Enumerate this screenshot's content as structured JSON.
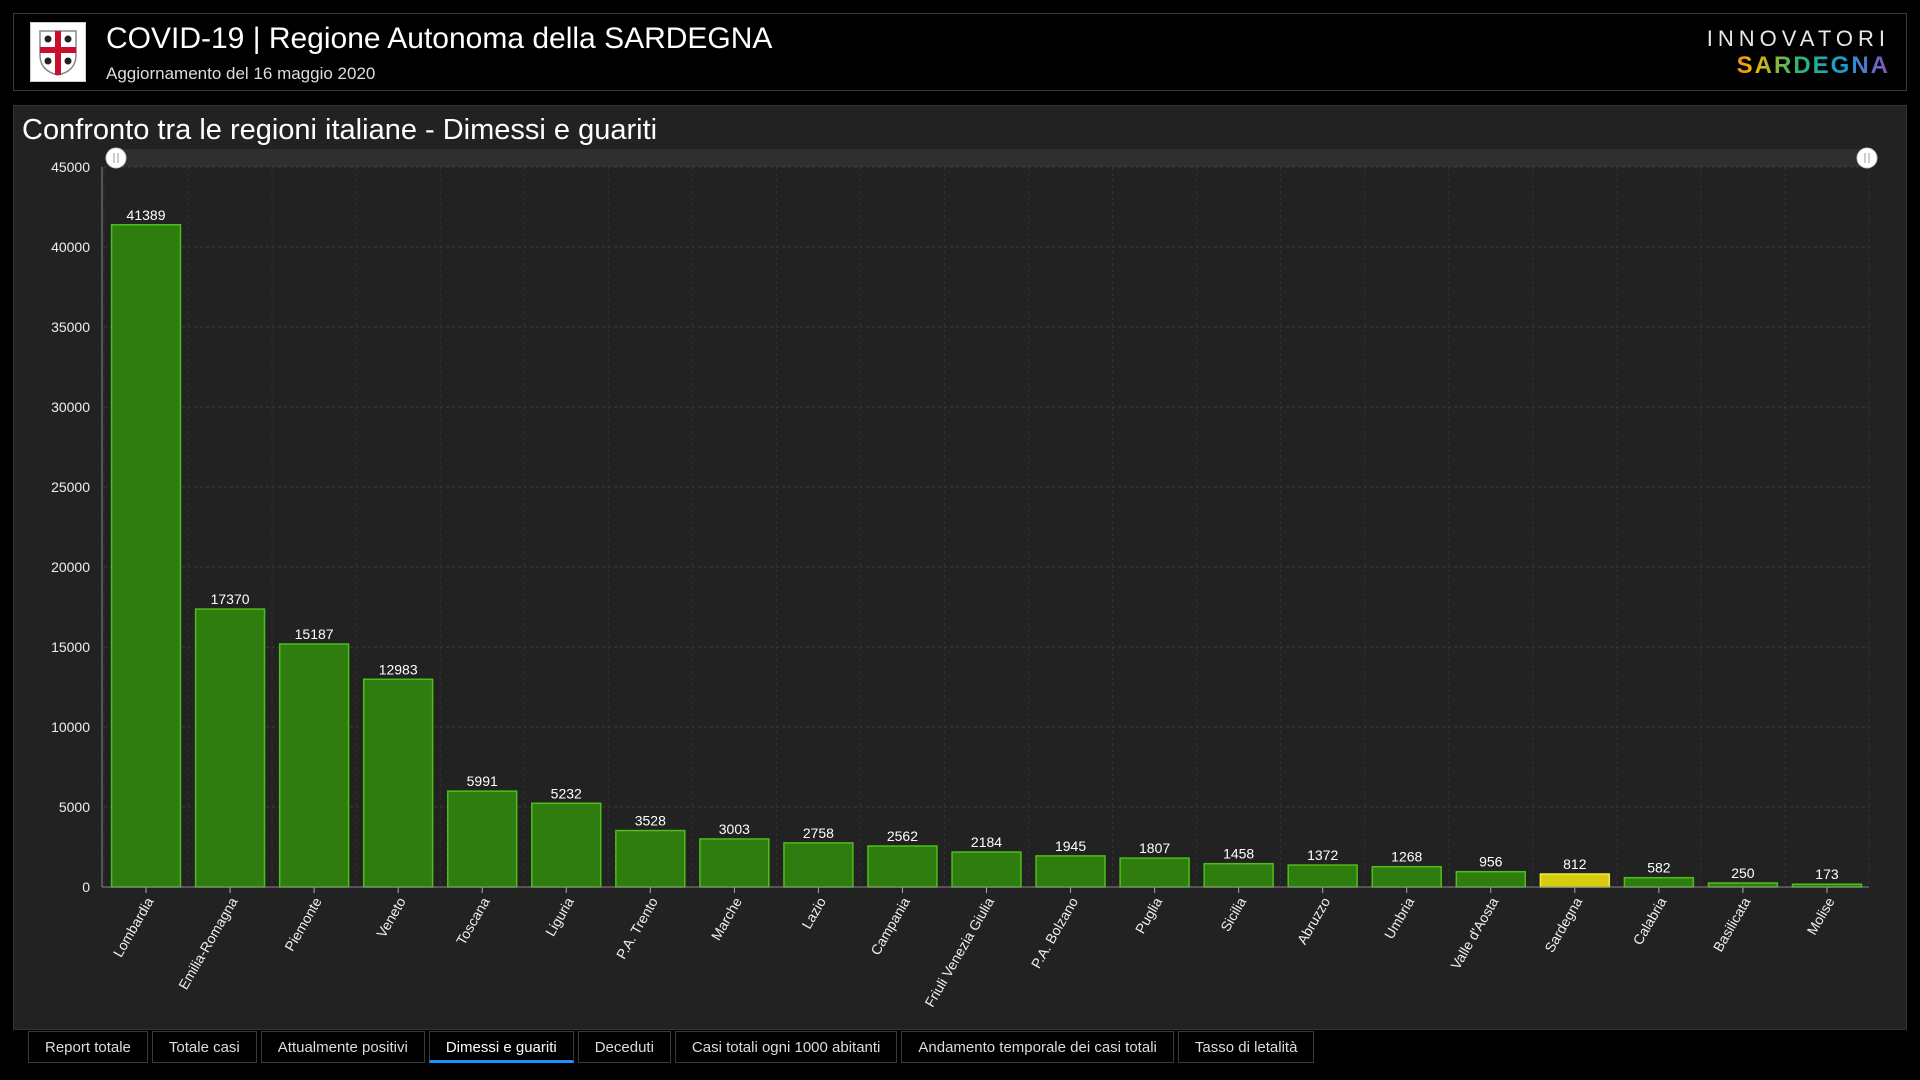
{
  "header": {
    "title": "COVID-19 | Regione Autonoma della SARDEGNA",
    "subtitle": "Aggiornamento del 16 maggio 2020",
    "brand_top": "INNOVATORI",
    "brand_bottom": "SARDEGNA"
  },
  "panel": {
    "title": "Confronto tra le regioni italiane - Dimessi e guariti"
  },
  "colors": {
    "bar": "#2e7d0e",
    "bar_border": "#4cbf1a",
    "highlight": "#d8cc0e",
    "highlight_border": "#f2ea3a",
    "tab_accent": "#1e90ff"
  },
  "chart_data": {
    "type": "bar",
    "categories": [
      "Lombardia",
      "Emilia-Romagna",
      "Piemonte",
      "Veneto",
      "Toscana",
      "Liguria",
      "P.A. Trento",
      "Marche",
      "Lazio",
      "Campania",
      "Friuli Venezia Giulia",
      "P.A. Bolzano",
      "Puglia",
      "Sicilia",
      "Abruzzo",
      "Umbria",
      "Valle d'Aosta",
      "Sardegna",
      "Calabria",
      "Basilicata",
      "Molise"
    ],
    "values": [
      41389,
      17370,
      15187,
      12983,
      5991,
      5232,
      3528,
      3003,
      2758,
      2562,
      2184,
      1945,
      1807,
      1458,
      1372,
      1268,
      956,
      812,
      582,
      250,
      173
    ],
    "highlight": "Sardegna",
    "ylim": [
      0,
      45000
    ],
    "yticks": [
      0,
      5000,
      10000,
      15000,
      20000,
      25000,
      30000,
      35000,
      40000,
      45000
    ],
    "grid": true,
    "legend": "none"
  },
  "tabs": [
    {
      "label": "Report totale"
    },
    {
      "label": "Totale casi"
    },
    {
      "label": "Attualmente positivi"
    },
    {
      "label": "Dimessi e guariti",
      "active": true
    },
    {
      "label": "Deceduti"
    },
    {
      "label": "Casi totali ogni 1000 abitanti"
    },
    {
      "label": "Andamento temporale dei casi totali"
    },
    {
      "label": "Tasso di letalità"
    }
  ]
}
